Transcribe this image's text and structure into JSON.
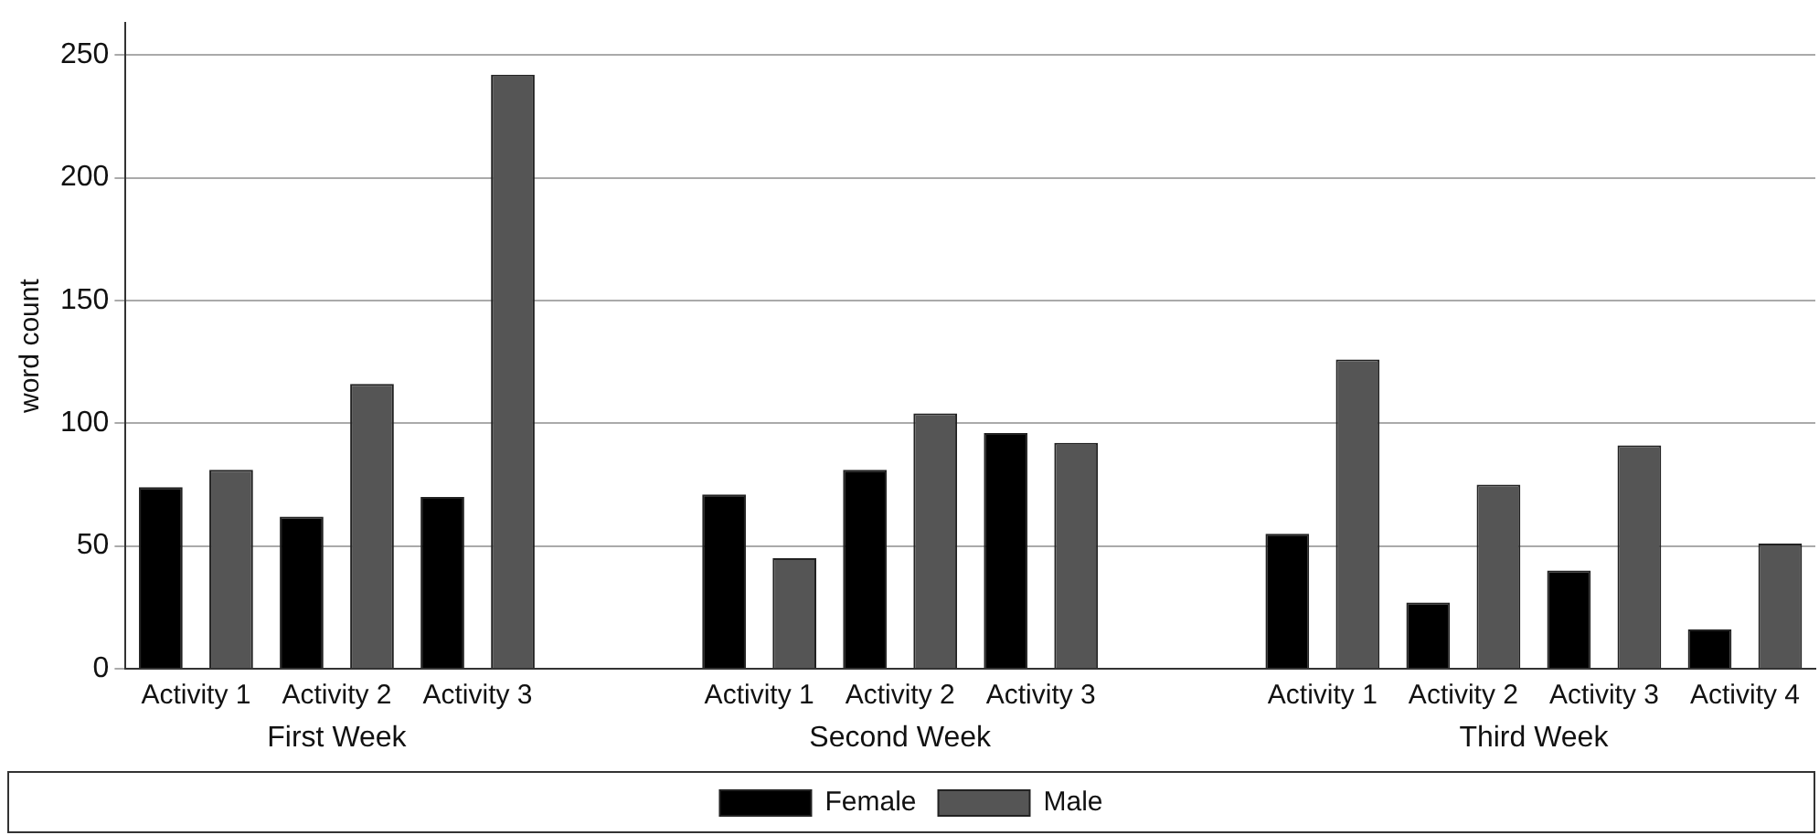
{
  "chart_data": {
    "type": "bar",
    "ylabel": "word count",
    "categories": [
      "Activity 1",
      "Activity 2",
      "Activity 3",
      null,
      "Activity 1",
      "Activity 2",
      "Activity 3",
      null,
      "Activity 1",
      "Activity 2",
      "Activity 3",
      "Activity 4"
    ],
    "series": [
      {
        "name": "Female",
        "color": "#000000",
        "values": [
          74,
          62,
          70,
          null,
          71,
          81,
          96,
          null,
          55,
          27,
          40,
          16
        ]
      },
      {
        "name": "Male",
        "color": "#555555",
        "values": [
          81,
          116,
          242,
          null,
          45,
          104,
          92,
          null,
          126,
          75,
          91,
          51
        ]
      }
    ],
    "annotations": [
      "First Week",
      "Second Week",
      "Third Week"
    ],
    "ylim": [
      0,
      263
    ],
    "yticks": [
      0,
      50,
      100,
      150,
      200,
      250
    ],
    "grid": "y",
    "legend": "bottom"
  }
}
